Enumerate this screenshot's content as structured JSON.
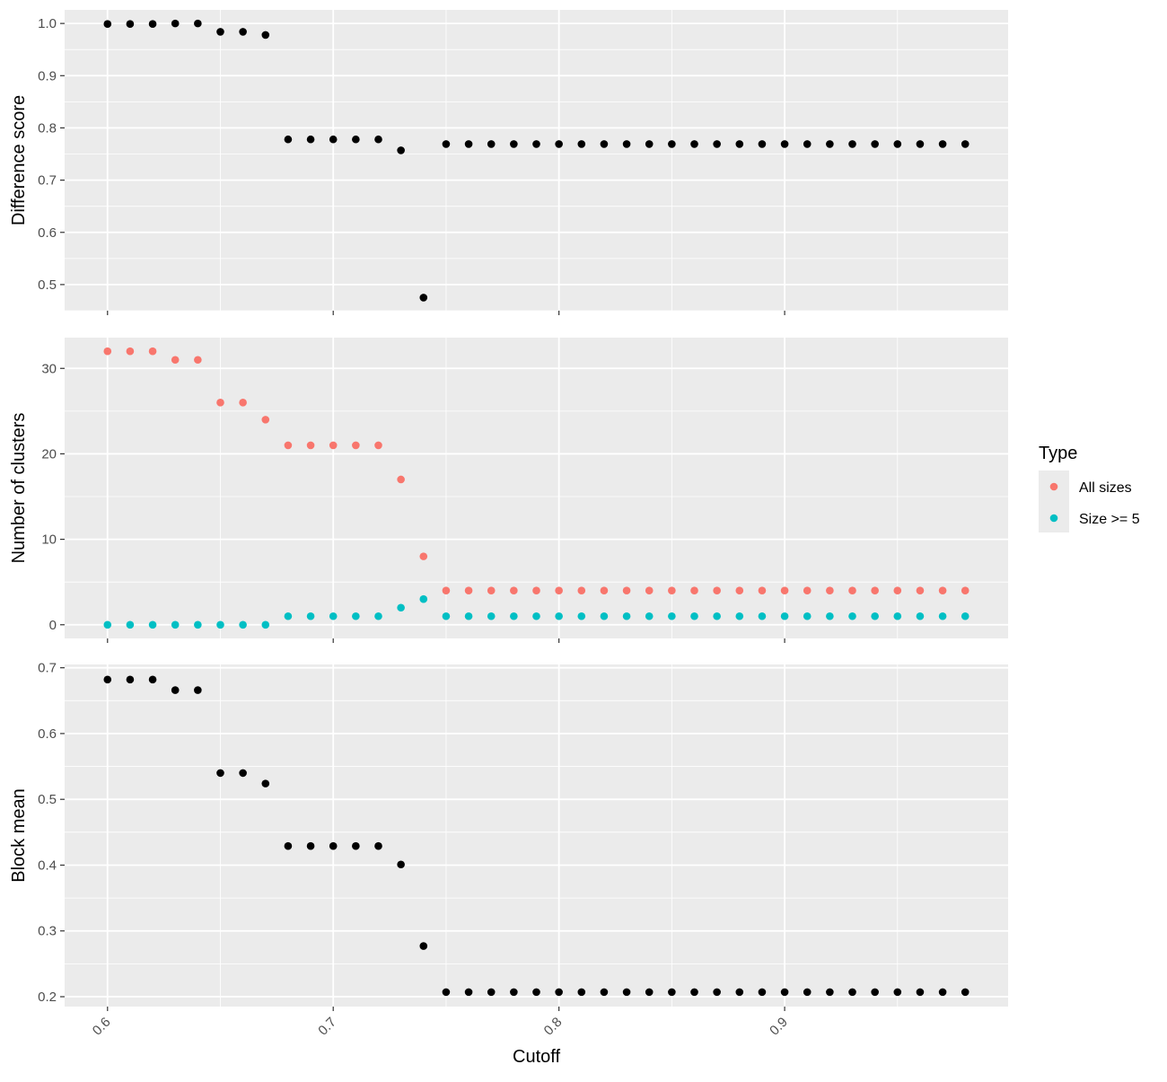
{
  "chart_data": {
    "type": "scatter",
    "xlabel": "Cutoff",
    "xlim": [
      0.581,
      0.999
    ],
    "x_ticks": [
      "0.6",
      "0.7",
      "0.8",
      "0.9"
    ],
    "x_tick_values": [
      0.6,
      0.7,
      0.8,
      0.9
    ],
    "x_tick_label_rotation": "45 degrees",
    "x": [
      0.6,
      0.61,
      0.62,
      0.63,
      0.64,
      0.65,
      0.66,
      0.67,
      0.68,
      0.69,
      0.7,
      0.71,
      0.72,
      0.73,
      0.74,
      0.75,
      0.76,
      0.77,
      0.78,
      0.79,
      0.8,
      0.81,
      0.82,
      0.83,
      0.84,
      0.85,
      0.86,
      0.87,
      0.88,
      0.89,
      0.9,
      0.91,
      0.92,
      0.93,
      0.94,
      0.95,
      0.96,
      0.97,
      0.98
    ],
    "background": "#ebebeb",
    "grid": true,
    "legend": {
      "title": "Type",
      "placement": "right",
      "entries": [
        {
          "label": "All sizes",
          "color": "#F8766D"
        },
        {
          "label": "Size >= 5",
          "color": "#00BFC4"
        }
      ]
    },
    "panels": [
      {
        "ylabel": "Difference score",
        "ylim": [
          0.45,
          1.026
        ],
        "y_ticks": [
          "0.5",
          "0.6",
          "0.7",
          "0.8",
          "0.9",
          "1.0"
        ],
        "y_tick_values": [
          0.5,
          0.6,
          0.7,
          0.8,
          0.9,
          1.0
        ],
        "series": [
          {
            "color": "#000000",
            "values": [
              0.999,
              0.999,
              0.999,
              1.0,
              1.0,
              0.984,
              0.984,
              0.978,
              0.778,
              0.778,
              0.778,
              0.778,
              0.778,
              0.757,
              0.475,
              0.769,
              0.769,
              0.769,
              0.769,
              0.769,
              0.769,
              0.769,
              0.769,
              0.769,
              0.769,
              0.769,
              0.769,
              0.769,
              0.769,
              0.769,
              0.769,
              0.769,
              0.769,
              0.769,
              0.769,
              0.769,
              0.769,
              0.769,
              0.769
            ]
          }
        ]
      },
      {
        "ylabel": "Number of clusters",
        "ylim": [
          -1.6,
          33.6
        ],
        "y_ticks": [
          "0",
          "10",
          "20",
          "30"
        ],
        "y_tick_values": [
          0,
          10,
          20,
          30
        ],
        "series": [
          {
            "name": "All sizes",
            "color": "#F8766D",
            "values": [
              32,
              32,
              32,
              31,
              31,
              26,
              26,
              24,
              21,
              21,
              21,
              21,
              21,
              17,
              8,
              4,
              4,
              4,
              4,
              4,
              4,
              4,
              4,
              4,
              4,
              4,
              4,
              4,
              4,
              4,
              4,
              4,
              4,
              4,
              4,
              4,
              4,
              4,
              4
            ]
          },
          {
            "name": "Size >= 5",
            "color": "#00BFC4",
            "values": [
              0,
              0,
              0,
              0,
              0,
              0,
              0,
              0,
              1,
              1,
              1,
              1,
              1,
              2,
              3,
              1,
              1,
              1,
              1,
              1,
              1,
              1,
              1,
              1,
              1,
              1,
              1,
              1,
              1,
              1,
              1,
              1,
              1,
              1,
              1,
              1,
              1,
              1,
              1
            ]
          }
        ]
      },
      {
        "ylabel": "Block mean",
        "ylim": [
          0.185,
          0.705
        ],
        "y_ticks": [
          "0.2",
          "0.3",
          "0.4",
          "0.5",
          "0.6",
          "0.7"
        ],
        "y_tick_values": [
          0.2,
          0.3,
          0.4,
          0.5,
          0.6,
          0.7
        ],
        "series": [
          {
            "color": "#000000",
            "values": [
              0.682,
              0.682,
              0.682,
              0.666,
              0.666,
              0.54,
              0.54,
              0.524,
              0.429,
              0.429,
              0.429,
              0.429,
              0.429,
              0.401,
              0.277,
              0.207,
              0.207,
              0.207,
              0.207,
              0.207,
              0.207,
              0.207,
              0.207,
              0.207,
              0.207,
              0.207,
              0.207,
              0.207,
              0.207,
              0.207,
              0.207,
              0.207,
              0.207,
              0.207,
              0.207,
              0.207,
              0.207,
              0.207,
              0.207
            ]
          }
        ]
      }
    ]
  }
}
